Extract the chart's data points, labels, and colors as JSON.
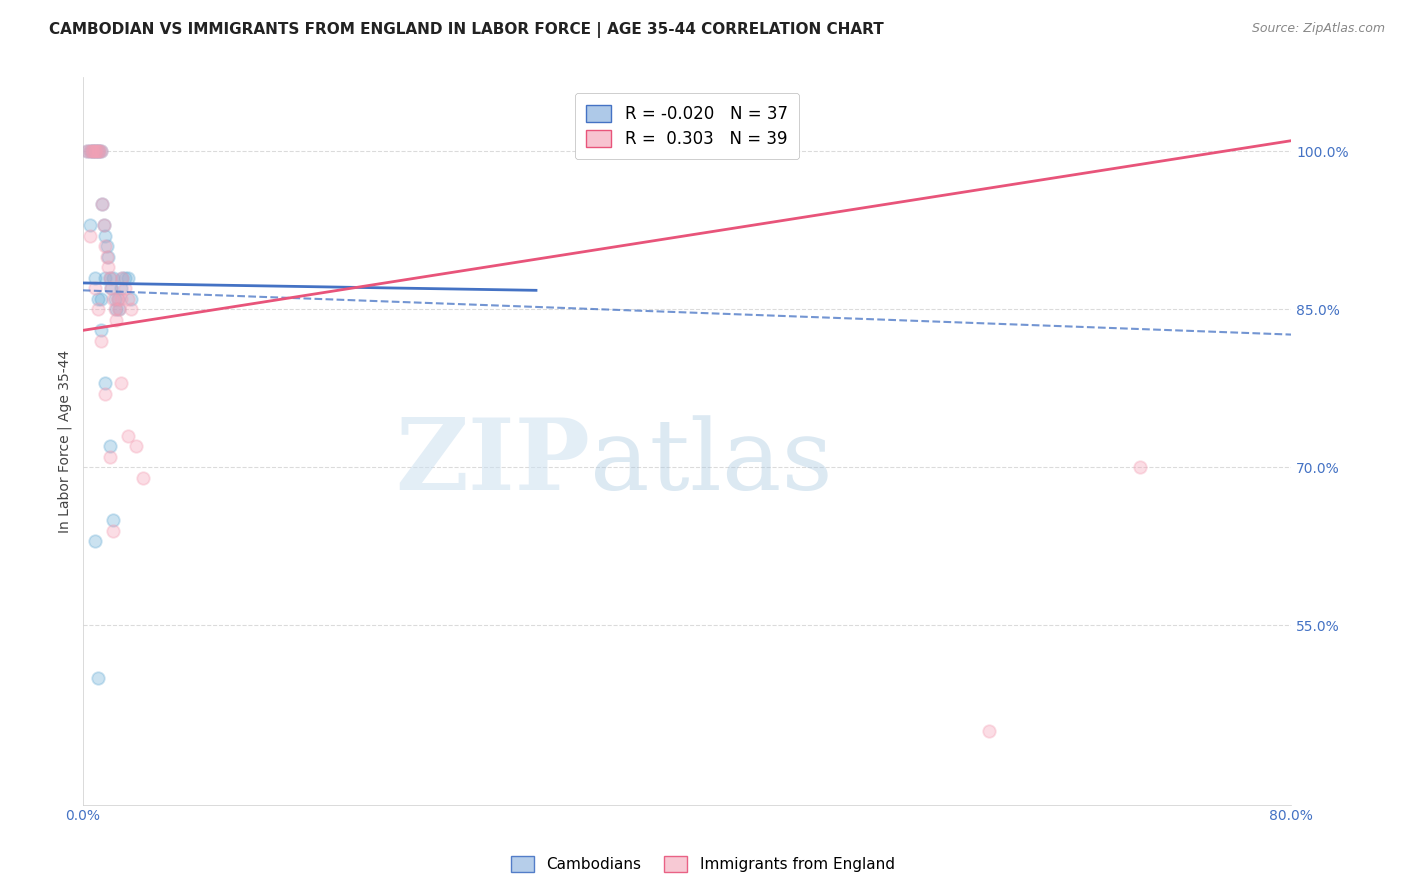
{
  "title": "CAMBODIAN VS IMMIGRANTS FROM ENGLAND IN LABOR FORCE | AGE 35-44 CORRELATION CHART",
  "source": "Source: ZipAtlas.com",
  "ylabel": "In Labor Force | Age 35-44",
  "xlim": [
    0.0,
    0.8
  ],
  "ylim": [
    0.38,
    1.07
  ],
  "yticks": [
    0.55,
    0.7,
    0.85,
    1.0
  ],
  "ytick_labels": [
    "55.0%",
    "70.0%",
    "85.0%",
    "100.0%"
  ],
  "xticks": [
    0.0,
    0.1,
    0.2,
    0.3,
    0.4,
    0.5,
    0.6,
    0.7,
    0.8
  ],
  "xtick_labels": [
    "0.0%",
    "",
    "",
    "",
    "",
    "",
    "",
    "",
    "80.0%"
  ],
  "cambodian_R": -0.02,
  "cambodian_N": 37,
  "england_R": 0.303,
  "england_N": 39,
  "cambodian_color": "#6baed6",
  "england_color": "#f4a0b5",
  "cambodian_x": [
    0.003,
    0.005,
    0.006,
    0.007,
    0.008,
    0.009,
    0.01,
    0.011,
    0.012,
    0.013,
    0.014,
    0.015,
    0.016,
    0.017,
    0.018,
    0.019,
    0.02,
    0.021,
    0.022,
    0.023,
    0.024,
    0.025,
    0.026,
    0.028,
    0.03,
    0.032,
    0.005,
    0.008,
    0.01,
    0.012,
    0.015,
    0.018,
    0.02,
    0.008,
    0.01,
    0.012,
    0.015
  ],
  "cambodian_y": [
    1.0,
    1.0,
    1.0,
    1.0,
    1.0,
    1.0,
    1.0,
    1.0,
    1.0,
    0.95,
    0.93,
    0.92,
    0.91,
    0.9,
    0.88,
    0.87,
    0.88,
    0.86,
    0.85,
    0.86,
    0.85,
    0.87,
    0.88,
    0.88,
    0.88,
    0.86,
    0.93,
    0.88,
    0.86,
    0.83,
    0.78,
    0.72,
    0.65,
    0.63,
    0.5,
    0.86,
    0.88
  ],
  "england_x": [
    0.003,
    0.005,
    0.006,
    0.007,
    0.008,
    0.009,
    0.01,
    0.011,
    0.012,
    0.013,
    0.014,
    0.015,
    0.016,
    0.017,
    0.018,
    0.019,
    0.02,
    0.021,
    0.022,
    0.023,
    0.024,
    0.025,
    0.026,
    0.028,
    0.03,
    0.032,
    0.005,
    0.008,
    0.01,
    0.012,
    0.015,
    0.018,
    0.02,
    0.025,
    0.03,
    0.035,
    0.04,
    0.6,
    0.7
  ],
  "england_y": [
    1.0,
    1.0,
    1.0,
    1.0,
    1.0,
    1.0,
    1.0,
    1.0,
    1.0,
    0.95,
    0.93,
    0.91,
    0.9,
    0.89,
    0.88,
    0.87,
    0.86,
    0.85,
    0.84,
    0.86,
    0.85,
    0.86,
    0.88,
    0.87,
    0.86,
    0.85,
    0.92,
    0.87,
    0.85,
    0.82,
    0.77,
    0.71,
    0.64,
    0.78,
    0.73,
    0.72,
    0.69,
    0.45,
    0.7
  ],
  "background_color": "#ffffff",
  "grid_color": "#d8d8d8",
  "axis_color": "#4472c4",
  "title_fontsize": 11,
  "label_fontsize": 10,
  "trend_camb_x0": 0.0,
  "trend_camb_y0": 0.875,
  "trend_camb_x1": 0.3,
  "trend_camb_y1": 0.868,
  "trend_eng_x0": 0.0,
  "trend_eng_y0": 0.83,
  "trend_eng_x1": 0.8,
  "trend_eng_y1": 1.01,
  "trend_camb_dash_x0": 0.0,
  "trend_camb_dash_y0": 0.868,
  "trend_camb_dash_x1": 0.8,
  "trend_camb_dash_y1": 0.826
}
